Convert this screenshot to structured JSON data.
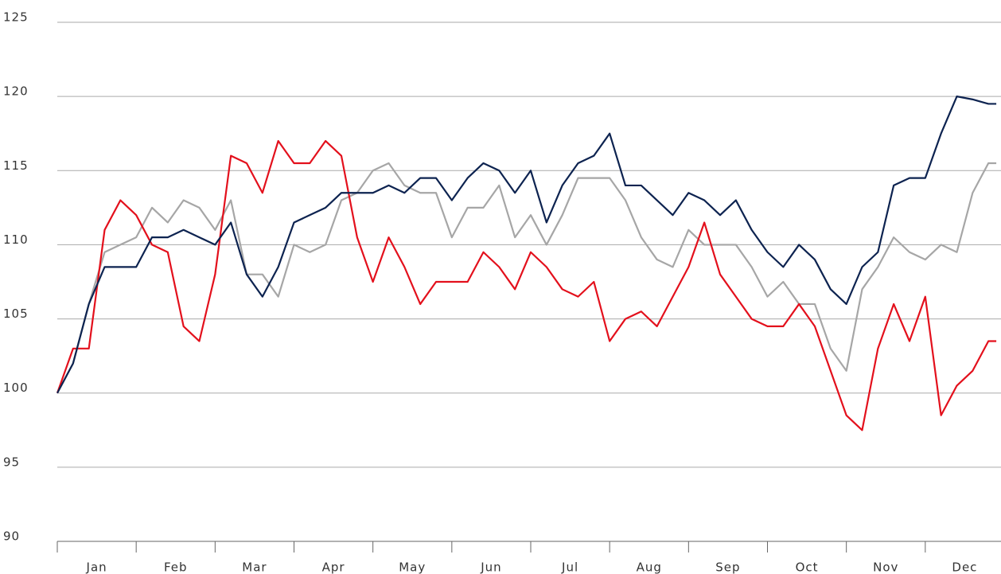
{
  "chart_data": {
    "type": "line",
    "categories": [
      "Jan",
      "Feb",
      "Mar",
      "Apr",
      "May",
      "Jun",
      "Jul",
      "Aug",
      "Sep",
      "Oct",
      "Nov",
      "Dec"
    ],
    "x": [
      0,
      0.2,
      0.4,
      0.6,
      0.8,
      1.0,
      1.2,
      1.4,
      1.6,
      1.8,
      2.0,
      2.2,
      2.4,
      2.6,
      2.8,
      3.0,
      3.2,
      3.4,
      3.6,
      3.8,
      4.0,
      4.2,
      4.4,
      4.6,
      4.8,
      5.0,
      5.2,
      5.4,
      5.6,
      5.8,
      6.0,
      6.2,
      6.4,
      6.6,
      6.8,
      7.0,
      7.2,
      7.4,
      7.6,
      7.8,
      8.0,
      8.2,
      8.4,
      8.6,
      8.8,
      9.0,
      9.2,
      9.4,
      9.6,
      9.8,
      10.0,
      10.2,
      10.4,
      10.6,
      10.8,
      11.0,
      11.2,
      11.4,
      11.6,
      11.8,
      11.9
    ],
    "xlim": [
      0,
      12
    ],
    "ylim": [
      90,
      125
    ],
    "yticks": [
      90,
      95,
      100,
      105,
      110,
      115,
      120,
      125
    ],
    "grid": true,
    "series": [
      {
        "color": "#a6a6a6",
        "values": [
          100,
          102,
          106,
          109.5,
          110,
          110.5,
          112.5,
          111.5,
          113,
          112.5,
          111,
          113,
          108,
          108,
          106.5,
          110,
          109.5,
          110,
          113,
          113.5,
          115,
          115.5,
          114,
          113.5,
          113.5,
          110.5,
          112.5,
          112.5,
          114,
          110.5,
          112,
          110,
          112,
          114.5,
          114.5,
          114.5,
          113,
          110.5,
          109,
          108.5,
          111,
          110,
          110,
          110,
          108.5,
          106.5,
          107.5,
          106,
          106,
          103,
          101.5,
          107,
          108.5,
          110.5,
          109.5,
          109,
          110,
          109.5,
          113.5,
          115.5,
          115.5
        ]
      },
      {
        "color": "#e3101c",
        "values": [
          100,
          103,
          103,
          111,
          113,
          112,
          110,
          109.5,
          104.5,
          103.5,
          108,
          116,
          115.5,
          113.5,
          117,
          115.5,
          115.5,
          117,
          116,
          110.5,
          107.5,
          110.5,
          108.5,
          106,
          107.5,
          107.5,
          107.5,
          109.5,
          108.5,
          107,
          109.5,
          108.5,
          107,
          106.5,
          107.5,
          103.5,
          105,
          105.5,
          104.5,
          106.5,
          108.5,
          111.5,
          108,
          106.5,
          105,
          104.5,
          104.5,
          106,
          104.5,
          101.5,
          98.5,
          97.5,
          103,
          106,
          103.5,
          106.5,
          98.5,
          100.5,
          101.5,
          103.5,
          103.5
        ]
      },
      {
        "color": "#0d2350",
        "values": [
          100,
          102,
          106,
          108.5,
          108.5,
          108.5,
          110.5,
          110.5,
          111,
          110.5,
          110,
          111.5,
          108,
          106.5,
          108.5,
          111.5,
          112,
          112.5,
          113.5,
          113.5,
          113.5,
          114,
          113.5,
          114.5,
          114.5,
          113,
          114.5,
          115.5,
          115,
          113.5,
          115,
          111.5,
          114,
          115.5,
          116,
          117.5,
          114,
          114,
          113,
          112,
          113.5,
          113,
          112,
          113,
          111,
          109.5,
          108.5,
          110,
          109,
          107,
          106,
          108.5,
          109.5,
          114,
          114.5,
          114.5,
          117.5,
          120,
          119.8,
          119.5,
          119.5
        ]
      }
    ]
  }
}
